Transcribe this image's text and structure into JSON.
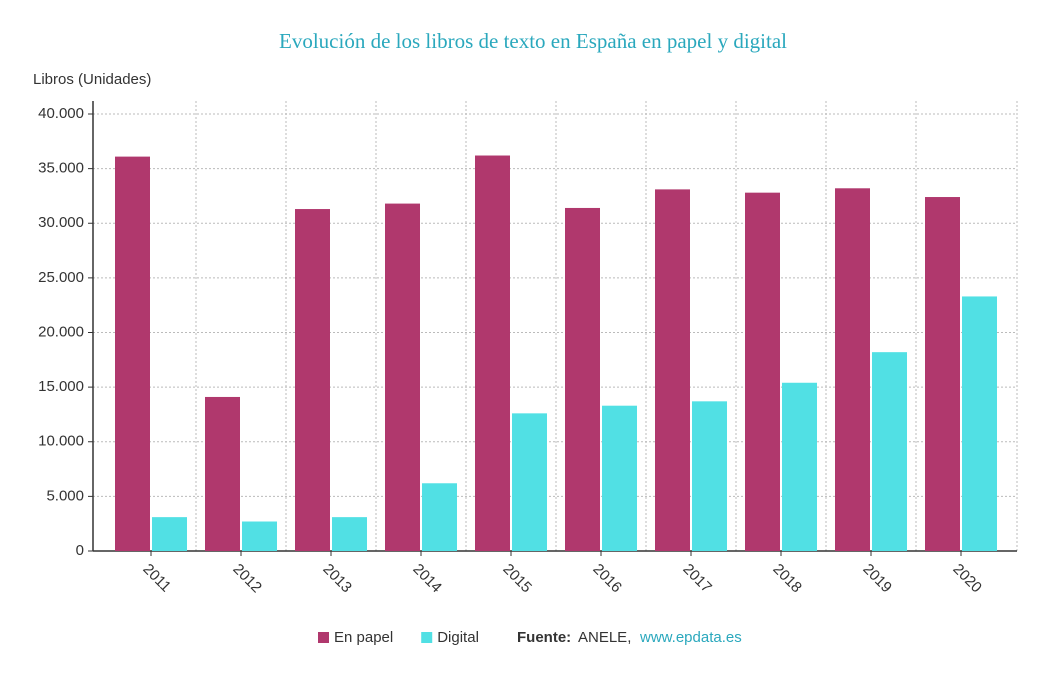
{
  "chart_data": {
    "type": "bar",
    "title": "Evolución de los libros de texto en España en papel y digital",
    "y_label": "Libros (Unidades)",
    "categories": [
      "2011",
      "2012",
      "2013",
      "2014",
      "2015",
      "2016",
      "2017",
      "2018",
      "2019",
      "2020"
    ],
    "series": [
      {
        "name": "En papel",
        "color": "#b0386d",
        "values": [
          36100,
          14100,
          31300,
          31800,
          36200,
          31400,
          33100,
          32800,
          33200,
          32400
        ]
      },
      {
        "name": "Digital",
        "color": "#51e0e4",
        "values": [
          3100,
          2700,
          3100,
          6200,
          12600,
          13300,
          13700,
          15400,
          18200,
          23300
        ]
      }
    ],
    "ylim": [
      0,
      40000
    ],
    "yticks": [
      0,
      {
        "value": 5000,
        "label": "5.000"
      },
      {
        "value": 10000,
        "label": "10.000"
      },
      {
        "value": 15000,
        "label": "15.000"
      },
      {
        "value": 20000,
        "label": "20.000"
      },
      {
        "value": 25000,
        "label": "25.000"
      },
      {
        "value": 30000,
        "label": "30.000"
      },
      {
        "value": 35000,
        "label": "35.000"
      },
      {
        "value": 40000,
        "label": "40.000"
      }
    ],
    "grid": true,
    "source": {
      "label": "Fuente:",
      "text": "ANELE,",
      "link": "www.epdata.es"
    }
  }
}
